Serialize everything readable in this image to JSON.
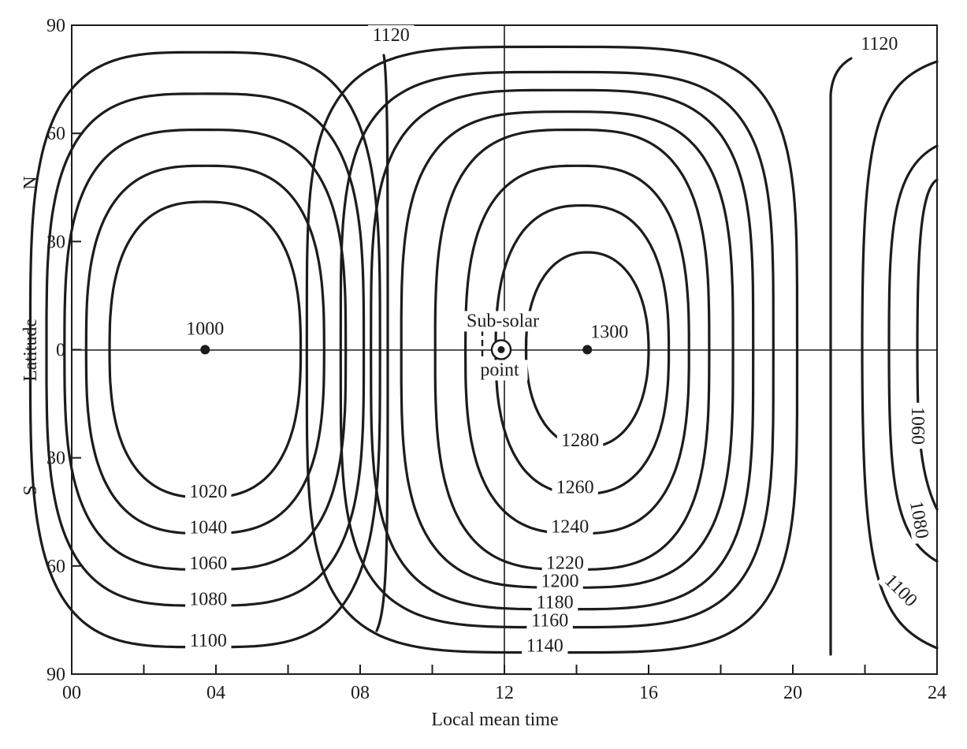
{
  "chart_data": {
    "type": "contour",
    "xlabel": "Local mean time",
    "ylabel": "Latitude",
    "north_label": "N",
    "south_label": "S",
    "xlim": [
      0,
      24
    ],
    "ylim": [
      -90,
      90
    ],
    "x_ticks": [
      {
        "value": 0,
        "label": "00"
      },
      {
        "value": 4,
        "label": "04"
      },
      {
        "value": 8,
        "label": "08"
      },
      {
        "value": 12,
        "label": "12"
      },
      {
        "value": 16,
        "label": "16"
      },
      {
        "value": 20,
        "label": "20"
      },
      {
        "value": 24,
        "label": "24"
      }
    ],
    "y_ticks": [
      {
        "value": 90,
        "label": "90"
      },
      {
        "value": 60,
        "label": "60"
      },
      {
        "value": 30,
        "label": "30"
      },
      {
        "value": 0,
        "label": "0"
      },
      {
        "value": -30,
        "label": "30"
      },
      {
        "value": -60,
        "label": "60"
      },
      {
        "value": -90,
        "label": "90"
      }
    ],
    "minimum": {
      "x": 3.7,
      "y": 0,
      "label": "1000"
    },
    "maximum": {
      "x": 14.3,
      "y": 0,
      "label": "1300"
    },
    "sub_solar_point": {
      "x": 12,
      "y": 0,
      "label_line1": "Sub-solar",
      "label_line2": "point"
    },
    "cold_contours": [
      {
        "level": 1020,
        "label": "1020",
        "x_half": 2.65,
        "y_half": 41
      },
      {
        "level": 1040,
        "label": "1040",
        "x_half": 3.3,
        "y_half": 51
      },
      {
        "level": 1060,
        "label": "1060",
        "x_half": 3.9,
        "y_half": 61
      },
      {
        "level": 1080,
        "label": "1080",
        "x_half": 4.4,
        "y_half": 71
      },
      {
        "level": 1100,
        "label": "1100",
        "x_half": 4.85,
        "y_half": 82.5
      }
    ],
    "warm_contours": [
      {
        "level": 1280,
        "label": "1280",
        "x_half": 1.7,
        "y_half": 27
      },
      {
        "level": 1260,
        "label": "1260",
        "x_half": 2.4,
        "y_half": 40
      },
      {
        "level": 1240,
        "label": "1240",
        "x_half": 3.1,
        "y_half": 51
      },
      {
        "level": 1220,
        "label": "1220",
        "x_half": 3.8,
        "y_half": 61
      },
      {
        "level": 1200,
        "label": "1200",
        "x_half": 4.6,
        "y_half": 66
      },
      {
        "level": 1180,
        "label": "1180",
        "x_half": 5.3,
        "y_half": 72
      },
      {
        "level": 1160,
        "label": "1160",
        "x_half": 6.0,
        "y_half": 77
      },
      {
        "level": 1140,
        "label": "1140",
        "x_half": 6.8,
        "y_half": 84
      }
    ],
    "other_labels": [
      {
        "label": "1120",
        "x": 8.9,
        "y": 85
      },
      {
        "label": "1120",
        "x": 22.4,
        "y": 83
      },
      {
        "label": "1060",
        "x": 23.6,
        "y": -28
      },
      {
        "label": "1080",
        "x": 23.5,
        "y": -55
      },
      {
        "label": "1100",
        "x": 23.1,
        "y": -74
      }
    ]
  }
}
